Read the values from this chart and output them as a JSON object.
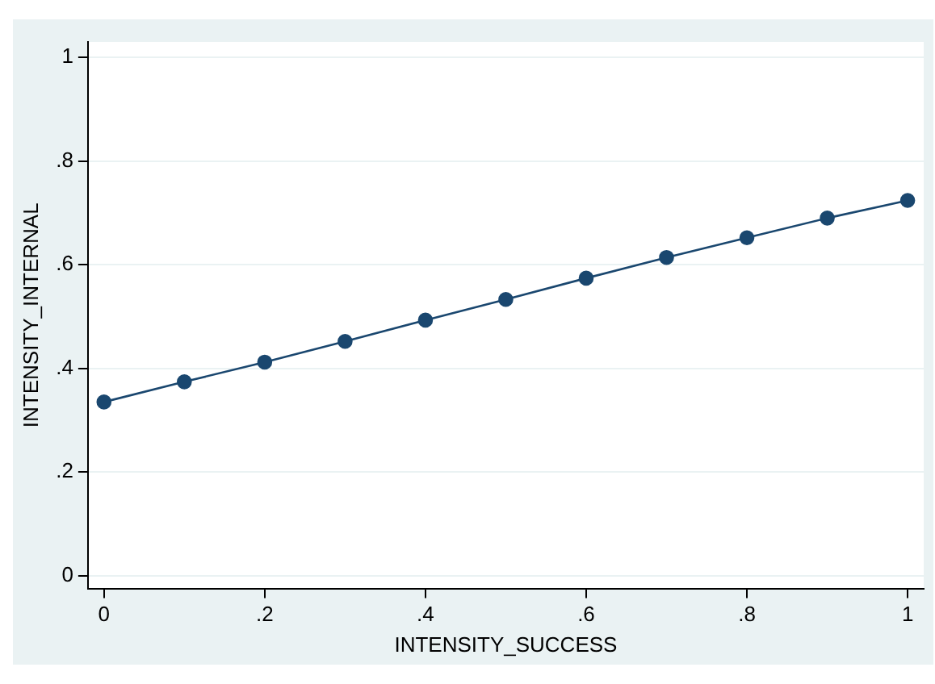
{
  "chart_data": {
    "type": "line",
    "xlabel": "INTENSITY_SUCCESS",
    "ylabel": "INTENSITY_INTERNAL",
    "x": [
      0,
      0.1,
      0.2,
      0.3,
      0.4,
      0.5,
      0.6,
      0.7,
      0.8,
      0.9,
      1
    ],
    "series": [
      {
        "color": "#1a476f",
        "values": [
          0.335,
          0.374,
          0.412,
          0.452,
          0.493,
          0.533,
          0.574,
          0.614,
          0.652,
          0.69,
          0.724
        ]
      }
    ],
    "xlim": [
      -0.02,
      1.02
    ],
    "ylim": [
      -0.025,
      1.03
    ],
    "xticks": [
      0,
      {
        "value": 0.2,
        "label": ".2"
      },
      {
        "value": 0.4,
        "label": ".4"
      },
      {
        "value": 0.6,
        "label": ".6"
      },
      {
        "value": 0.8,
        "label": ".8"
      },
      1
    ],
    "yticks": [
      0,
      {
        "value": 0.2,
        "label": ".2"
      },
      {
        "value": 0.4,
        "label": ".4"
      },
      {
        "value": 0.6,
        "label": ".6"
      },
      {
        "value": 0.8,
        "label": ".8"
      },
      1
    ],
    "grid": "y",
    "legend": false,
    "marker": "circle",
    "line_style": "solid"
  }
}
